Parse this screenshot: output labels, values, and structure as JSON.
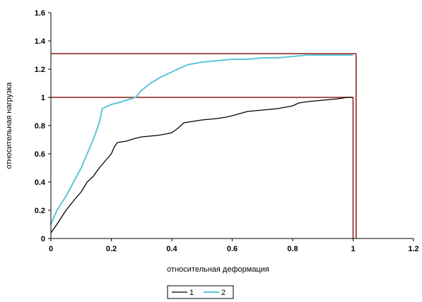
{
  "chart_data": {
    "type": "line",
    "xlabel": "относительная деформация",
    "ylabel": "относительная нагрузка",
    "xlim": [
      0,
      1.2
    ],
    "ylim": [
      0,
      1.6
    ],
    "xticks": [
      0,
      0.2,
      0.4,
      0.6,
      0.8,
      1,
      1.2
    ],
    "yticks": [
      0,
      0.2,
      0.4,
      0.6,
      0.8,
      1,
      1.2,
      1.4,
      1.6
    ],
    "grid": false,
    "legend_position": "bottom-center",
    "series": [
      {
        "name": "1",
        "color": "#000000",
        "x": [
          0,
          0.02,
          0.05,
          0.08,
          0.1,
          0.12,
          0.14,
          0.16,
          0.18,
          0.2,
          0.21,
          0.22,
          0.25,
          0.28,
          0.3,
          0.35,
          0.38,
          0.4,
          0.42,
          0.44,
          0.47,
          0.5,
          0.55,
          0.58,
          0.6,
          0.65,
          0.7,
          0.75,
          0.8,
          0.82,
          0.85,
          0.9,
          0.95,
          0.98,
          1.0
        ],
        "y": [
          0.04,
          0.1,
          0.2,
          0.28,
          0.33,
          0.4,
          0.44,
          0.5,
          0.55,
          0.6,
          0.65,
          0.68,
          0.69,
          0.71,
          0.72,
          0.73,
          0.74,
          0.75,
          0.78,
          0.82,
          0.83,
          0.84,
          0.85,
          0.86,
          0.87,
          0.9,
          0.91,
          0.92,
          0.94,
          0.96,
          0.97,
          0.98,
          0.99,
          1.0,
          1.0
        ]
      },
      {
        "name": "2",
        "color": "#5bc6d6",
        "x": [
          0,
          0.02,
          0.05,
          0.08,
          0.1,
          0.12,
          0.14,
          0.16,
          0.17,
          0.18,
          0.2,
          0.22,
          0.25,
          0.28,
          0.3,
          0.33,
          0.36,
          0.38,
          0.4,
          0.42,
          0.45,
          0.5,
          0.55,
          0.6,
          0.65,
          0.7,
          0.75,
          0.8,
          0.85,
          0.9,
          0.95,
          1.0
        ],
        "y": [
          0.1,
          0.2,
          0.3,
          0.42,
          0.5,
          0.6,
          0.7,
          0.82,
          0.92,
          0.93,
          0.95,
          0.96,
          0.98,
          1.0,
          1.05,
          1.1,
          1.14,
          1.16,
          1.18,
          1.2,
          1.23,
          1.25,
          1.26,
          1.27,
          1.27,
          1.28,
          1.28,
          1.29,
          1.3,
          1.3,
          1.3,
          1.3
        ]
      }
    ],
    "reference_lines": {
      "color": "#8b1a1a",
      "horizontal": [
        {
          "y": 1.0,
          "x_end": 1.0
        },
        {
          "y": 1.31,
          "x_end": 1.01
        }
      ],
      "vertical": [
        {
          "x": 1.0,
          "y_end": 1.0
        },
        {
          "x": 1.01,
          "y_end": 1.31
        }
      ]
    }
  }
}
